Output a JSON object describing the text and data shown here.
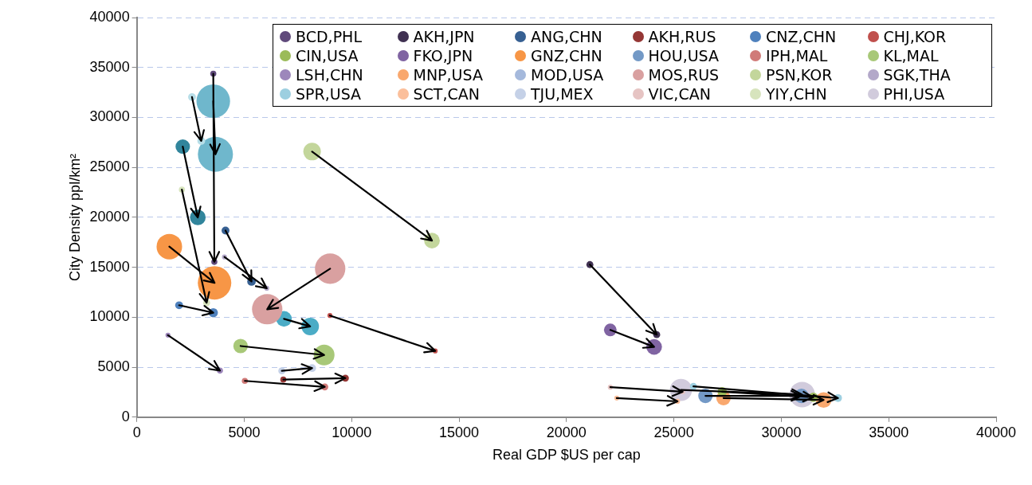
{
  "chart_data": {
    "type": "bubble",
    "xlabel": "Real GDP $US per cap",
    "ylabel": "City Density ppl/km²",
    "xlim": [
      0,
      40000
    ],
    "xticks": [
      0,
      5000,
      10000,
      15000,
      20000,
      25000,
      30000,
      35000,
      40000
    ],
    "ylim": [
      0,
      40000
    ],
    "yticks": [
      0,
      5000,
      10000,
      15000,
      20000,
      25000,
      30000,
      35000,
      40000
    ],
    "grid": "y",
    "legend": "top right",
    "series": [
      {
        "name": "BCD,PHL",
        "color": "#604a7b",
        "x": [
          3560,
          3610
        ],
        "values": [
          34380,
          15540
        ],
        "sizes": [
          0.03,
          0.03
        ]
      },
      {
        "name": "AKH,JPN",
        "color": "#403152",
        "x": [
          21090,
          24200
        ],
        "values": [
          15270,
          8260
        ],
        "sizes": [
          0.04,
          0.04
        ]
      },
      {
        "name": "ANG,CHN",
        "color": "#376092",
        "x": [
          4130,
          5340
        ],
        "values": [
          18680,
          13580
        ],
        "sizes": [
          0.05,
          0.06
        ]
      },
      {
        "name": "AKH,RUS",
        "color": "#953735",
        "x": [
          6820,
          9710
        ],
        "values": [
          3760,
          3900
        ],
        "sizes": [
          0.03,
          0.04
        ]
      },
      {
        "name": "CNZ,CHN",
        "color": "#4f81bd",
        "x": [
          1970,
          3560
        ],
        "values": [
          11200,
          10450
        ],
        "sizes": [
          0.05,
          0.07
        ]
      },
      {
        "name": "CHJ,KOR",
        "color": "#c0504d",
        "x": [
          8990,
          13890
        ],
        "values": [
          10170,
          6630
        ],
        "sizes": [
          0.02,
          0.02
        ]
      },
      {
        "name": "CIN,USA",
        "color": "#9bbb59",
        "x": [
          27250,
          31490
        ],
        "values": [
          2540,
          1990
        ],
        "sizes": [
          0.07,
          0.07
        ]
      },
      {
        "name": "FKO,JPN",
        "color": "#8064a2",
        "x": [
          22040,
          24080
        ],
        "values": [
          8730,
          7030
        ],
        "sizes": [
          0.13,
          0.2
        ]
      },
      {
        "name": "GNZ,CHN",
        "color": "#f79646",
        "x": [
          1515,
          3620
        ],
        "values": [
          17070,
          13440
        ],
        "sizes": [
          0.53,
          0.91
        ]
      },
      {
        "name": "HOU,USA",
        "color": "#7399c6",
        "x": [
          26470,
          30940
        ],
        "values": [
          2130,
          2130
        ],
        "sizes": [
          0.17,
          0.17
        ]
      },
      {
        "name": "IPH,MAL",
        "color": "#d07a78",
        "x": [
          5030,
          8750
        ],
        "values": [
          3630,
          3030
        ],
        "sizes": [
          0.03,
          0.04
        ]
      },
      {
        "name": "KL,MAL",
        "color": "#a8c878",
        "x": [
          4830,
          8720
        ],
        "values": [
          7120,
          6220
        ],
        "sizes": [
          0.17,
          0.35
        ]
      },
      {
        "name": "LSH,CHN",
        "color": "#9d87bb",
        "x": [
          1450,
          3870
        ],
        "values": [
          8210,
          4660
        ],
        "sizes": [
          0.02,
          0.03
        ]
      },
      {
        "name": "MNP,USA",
        "color": "#f9a86e",
        "x": [
          27310,
          31970
        ],
        "values": [
          1910,
          1720
        ],
        "sizes": [
          0.17,
          0.2
        ]
      },
      {
        "name": "MOD,USA",
        "color": "#a5b9dc",
        "x": [
          null,
          null
        ],
        "values": [
          null,
          null
        ],
        "sizes": [
          null,
          null
        ]
      },
      {
        "name": "MOS,RUS",
        "color": "#d9a0a0",
        "x": [
          9000,
          6070
        ],
        "values": [
          14860,
          10800
        ],
        "sizes": [
          0.75,
          0.75
        ]
      },
      {
        "name": "PSN,KOR",
        "color": "#c3d69b",
        "x": [
          8160,
          13740
        ],
        "values": [
          26580,
          17670
        ],
        "sizes": [
          0.25,
          0.2
        ]
      },
      {
        "name": "SGK,THA",
        "color": "#b3a8c9",
        "x": [
          4080,
          6050
        ],
        "values": [
          16030,
          12900
        ],
        "sizes": [
          0.02,
          0.02
        ]
      },
      {
        "name": "SPR,USA",
        "color": "#9dcfe0",
        "x": [
          25910,
          32640
        ],
        "values": [
          3080,
          1910
        ],
        "sizes": [
          0.04,
          0.05
        ]
      },
      {
        "name": "SCT,CAN",
        "color": "#fbbf9b",
        "x": [
          22340,
          25170
        ],
        "values": [
          1910,
          1580
        ],
        "sizes": [
          0.02,
          0.02
        ]
      },
      {
        "name": "TJU,MEX",
        "color": "#c5d1e7",
        "x": [
          6750,
          8160
        ],
        "values": [
          4630,
          4910
        ],
        "sizes": [
          0.04,
          0.05
        ]
      },
      {
        "name": "VIC,CAN",
        "color": "#e6c4c3",
        "x": [
          22040,
          25410
        ],
        "values": [
          3000,
          2540
        ],
        "sizes": [
          0.02,
          0.02
        ]
      },
      {
        "name": "YIY,CHN",
        "color": "#d7e4bd",
        "x": [
          2100,
          3250
        ],
        "values": [
          22770,
          11450
        ],
        "sizes": [
          0.03,
          0.04
        ]
      },
      {
        "name": "PHI,USA",
        "color": "#d1cbdc",
        "x": [
          25330,
          30970
        ],
        "values": [
          2730,
          2260
        ],
        "sizes": [
          0.4,
          0.53
        ]
      },
      {
        "color": "#b7dee8",
        "x": [
          2570,
          3000
        ],
        "values": [
          32040,
          27650
        ],
        "sizes": [
          0.05,
          0.05
        ]
      },
      {
        "color": "#6fb7cc",
        "x": [
          3560,
          3660
        ],
        "values": [
          31630,
          26310
        ],
        "sizes": [
          0.92,
          1
        ]
      },
      {
        "color": "#31859c",
        "x": [
          2140,
          2840
        ],
        "values": [
          27080,
          19990
        ],
        "sizes": [
          0.17,
          0.2
        ]
      },
      {
        "color": "#4bacc6",
        "x": [
          6850,
          8070
        ],
        "values": [
          9840,
          9080
        ],
        "sizes": [
          0.2,
          0.25
        ]
      }
    ]
  }
}
